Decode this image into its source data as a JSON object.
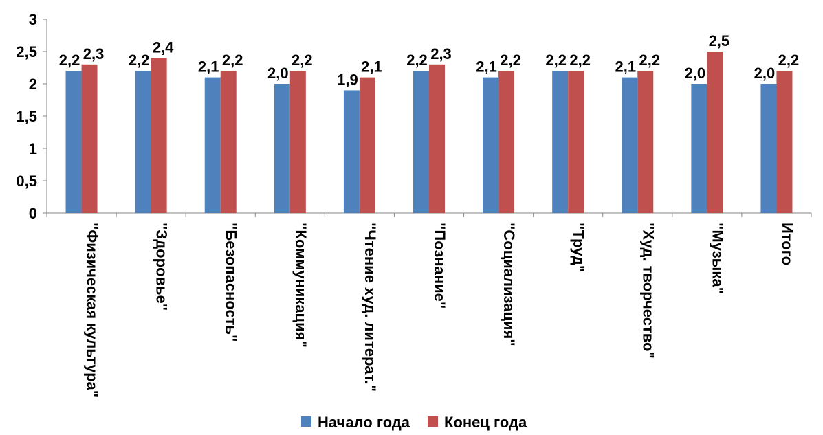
{
  "chart_data": {
    "type": "bar",
    "title": "",
    "xlabel": "",
    "ylabel": "",
    "ylim": [
      0,
      3
    ],
    "yticks": [
      0,
      0.5,
      1,
      1.5,
      2,
      2.5,
      3
    ],
    "ytick_labels": [
      "0",
      "0,5",
      "1",
      "1,5",
      "2",
      "2,5",
      "3"
    ],
    "grid": false,
    "legend_position": "bottom",
    "categories": [
      "\"Физическая культура\"",
      "\"Здоровье\"",
      "\"Безопасность\"",
      "\"Коммуникация\"",
      "\"Чтение худ. литерат.\"",
      "\"Познание\"",
      "\"Социализация\"",
      "\"Труд\"",
      "\"Худ. творчество\"",
      "\"Музыка\"",
      "Итого"
    ],
    "series": [
      {
        "name": "Начало года",
        "color": "#4f81bd",
        "values": [
          2.2,
          2.2,
          2.1,
          2.0,
          1.9,
          2.2,
          2.1,
          2.2,
          2.1,
          2.0,
          2.0
        ],
        "labels": [
          "2,2",
          "2,2",
          "2,1",
          "2,0",
          "1,9",
          "2,2",
          "2,1",
          "2,2",
          "2,1",
          "2,0",
          "2,0"
        ]
      },
      {
        "name": "Конец года",
        "color": "#c0504d",
        "values": [
          2.3,
          2.4,
          2.2,
          2.2,
          2.1,
          2.3,
          2.2,
          2.2,
          2.2,
          2.5,
          2.2
        ],
        "labels": [
          "2,3",
          "2,4",
          "2,2",
          "2,2",
          "2,1",
          "2,3",
          "2,2",
          "2,2",
          "2,2",
          "2,5",
          "2,2"
        ]
      }
    ]
  }
}
